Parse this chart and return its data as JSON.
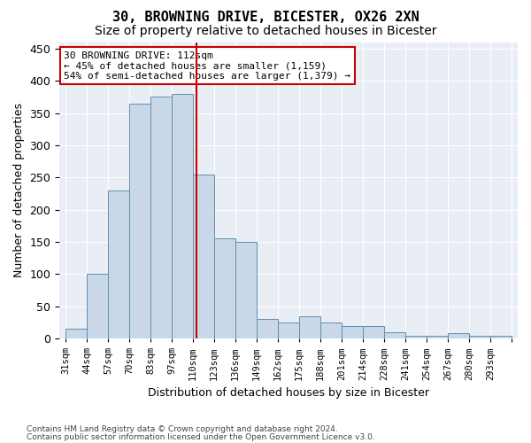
{
  "title": "30, BROWNING DRIVE, BICESTER, OX26 2XN",
  "subtitle": "Size of property relative to detached houses in Bicester",
  "xlabel": "Distribution of detached houses by size in Bicester",
  "ylabel": "Number of detached properties",
  "categories": [
    "31sqm",
    "44sqm",
    "57sqm",
    "70sqm",
    "83sqm",
    "97sqm",
    "110sqm",
    "123sqm",
    "136sqm",
    "149sqm",
    "162sqm",
    "175sqm",
    "188sqm",
    "201sqm",
    "214sqm",
    "228sqm",
    "241sqm",
    "254sqm",
    "267sqm",
    "280sqm",
    "293sqm"
  ],
  "bar_heights": [
    15,
    100,
    230,
    365,
    375,
    380,
    255,
    155,
    150,
    30,
    25,
    35,
    25,
    20,
    20,
    10,
    5,
    5,
    8,
    5,
    5
  ],
  "bar_color": "#c8d8e8",
  "bar_edge_color": "#6090b0",
  "vline_color": "#cc0000",
  "annotation_line1": "30 BROWNING DRIVE: 112sqm",
  "annotation_line2": "← 45% of detached houses are smaller (1,159)",
  "annotation_line3": "54% of semi-detached houses are larger (1,379) →",
  "annotation_box_color": "#ffffff",
  "annotation_box_edge_color": "#cc0000",
  "footer1": "Contains HM Land Registry data © Crown copyright and database right 2024.",
  "footer2": "Contains public sector information licensed under the Open Government Licence v3.0.",
  "ylim": [
    0,
    460
  ],
  "yticks": [
    0,
    50,
    100,
    150,
    200,
    250,
    300,
    350,
    400,
    450
  ],
  "title_fontsize": 11,
  "subtitle_fontsize": 10,
  "bg_color": "#e8eef4"
}
